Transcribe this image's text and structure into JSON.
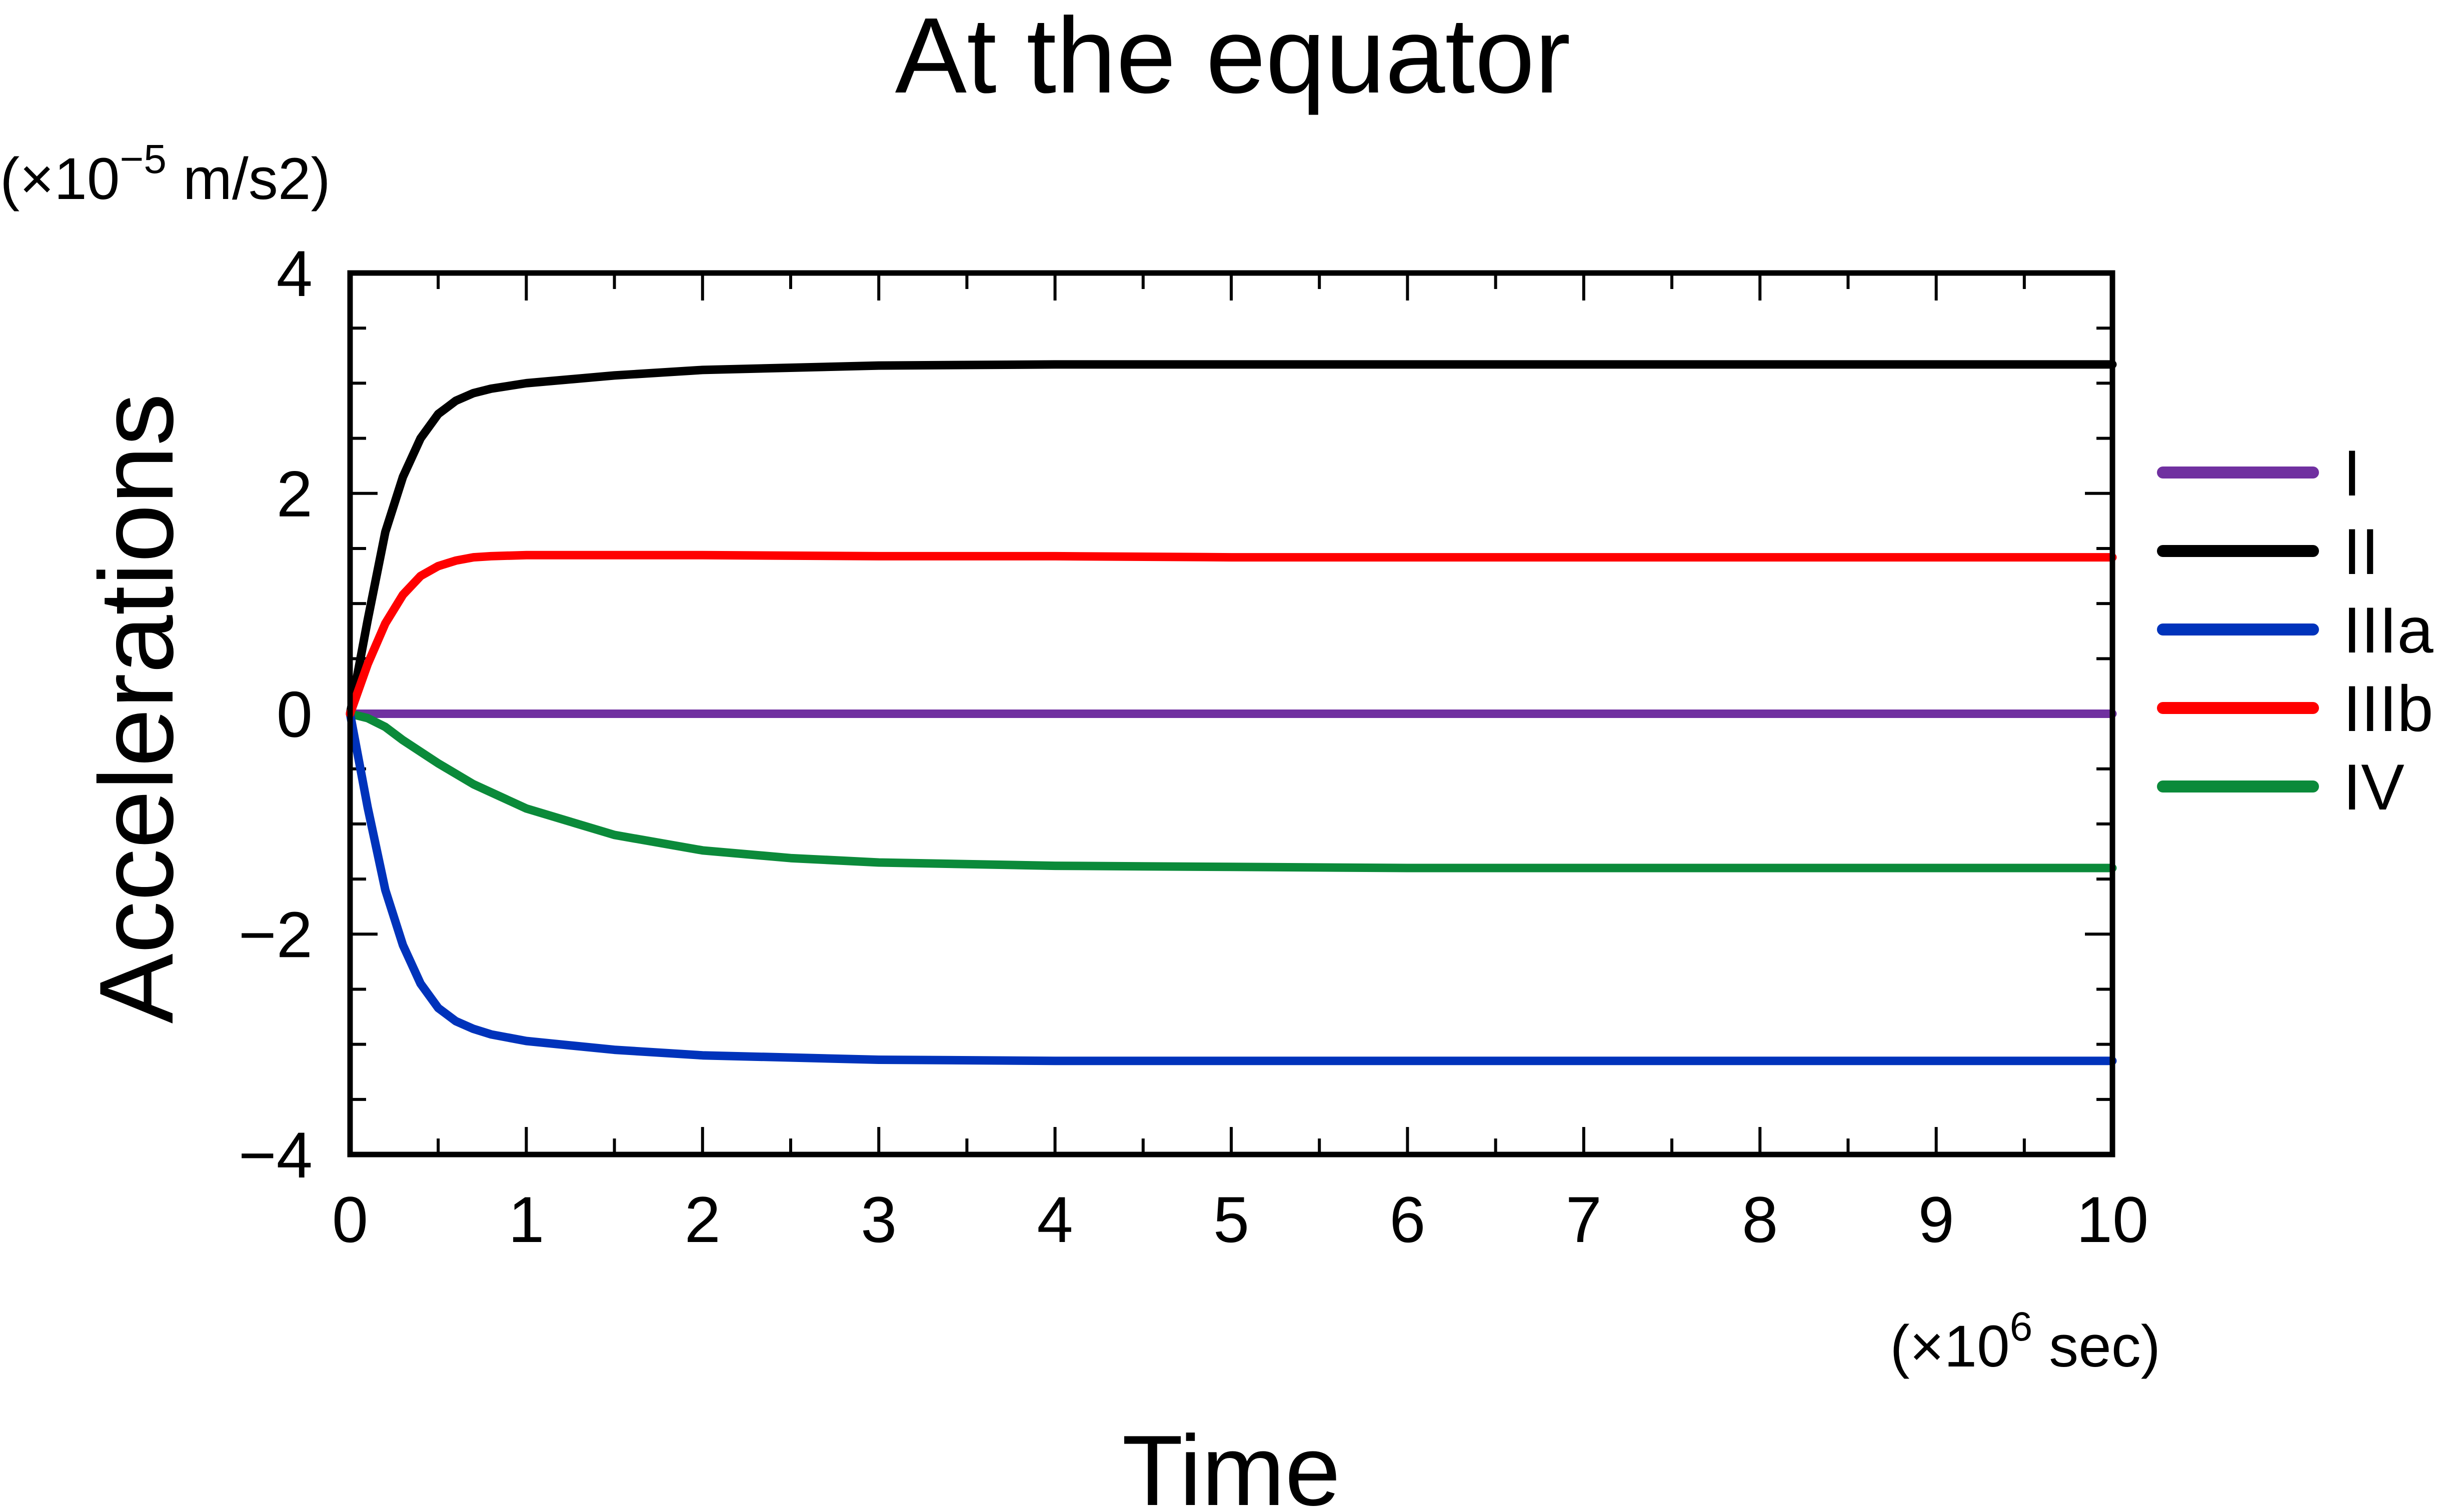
{
  "chart_data": {
    "type": "line",
    "title": "At the equator",
    "xlabel": "Time",
    "ylabel": "Accelerations",
    "x_unit": {
      "prefix": "(×10",
      "exp": "6",
      "suffix": " sec)"
    },
    "y_unit": {
      "prefix": "(×10",
      "exp": "−5",
      "suffix": " m/s2)"
    },
    "xlim": [
      0,
      10
    ],
    "ylim": [
      -4,
      4
    ],
    "x_ticks": [
      0,
      1,
      2,
      3,
      4,
      5,
      6,
      7,
      8,
      9,
      10
    ],
    "x_tick_labels": [
      "0",
      "1",
      "2",
      "3",
      "4",
      "5",
      "6",
      "7",
      "8",
      "9",
      "10"
    ],
    "y_ticks": [
      -4,
      -2,
      0,
      2,
      4
    ],
    "y_tick_labels": [
      "−4",
      "−2",
      "0",
      "2",
      "4"
    ],
    "grid": false,
    "legend_position": "right",
    "series": [
      {
        "name": "I",
        "color": "#7030a0",
        "x": [
          0,
          1,
          2,
          3,
          4,
          5,
          6,
          7,
          8,
          9,
          10
        ],
        "y": [
          0,
          0,
          0,
          0,
          0,
          0,
          0,
          0,
          0,
          0,
          0
        ]
      },
      {
        "name": "II",
        "color": "#000000",
        "x": [
          0,
          0.1,
          0.2,
          0.3,
          0.4,
          0.5,
          0.6,
          0.7,
          0.8,
          1.0,
          1.5,
          2.0,
          3.0,
          4.0,
          5.0,
          6.0,
          8.0,
          10.0
        ],
        "y": [
          0,
          0.85,
          1.65,
          2.15,
          2.5,
          2.72,
          2.84,
          2.91,
          2.95,
          3.0,
          3.07,
          3.12,
          3.16,
          3.17,
          3.17,
          3.17,
          3.17,
          3.17
        ]
      },
      {
        "name": "IIIa",
        "color": "#0033bb",
        "x": [
          0,
          0.1,
          0.2,
          0.3,
          0.4,
          0.5,
          0.6,
          0.7,
          0.8,
          1.0,
          1.5,
          2.0,
          3.0,
          4.0,
          5.0,
          6.0,
          8.0,
          10.0
        ],
        "y": [
          0,
          -0.85,
          -1.6,
          -2.1,
          -2.45,
          -2.67,
          -2.79,
          -2.86,
          -2.91,
          -2.97,
          -3.05,
          -3.1,
          -3.14,
          -3.15,
          -3.15,
          -3.15,
          -3.15,
          -3.15
        ]
      },
      {
        "name": "IIIb",
        "color": "#ff0000",
        "x": [
          0,
          0.1,
          0.2,
          0.3,
          0.4,
          0.5,
          0.6,
          0.7,
          0.8,
          1.0,
          1.5,
          2.0,
          3.0,
          4.0,
          5.0,
          6.0,
          8.0,
          10.0
        ],
        "y": [
          0,
          0.45,
          0.82,
          1.08,
          1.25,
          1.34,
          1.39,
          1.42,
          1.43,
          1.44,
          1.44,
          1.44,
          1.43,
          1.43,
          1.42,
          1.42,
          1.42,
          1.42
        ]
      },
      {
        "name": "IV",
        "color": "#0b8a3a",
        "x": [
          0,
          0.1,
          0.2,
          0.3,
          0.5,
          0.7,
          1.0,
          1.5,
          2.0,
          2.5,
          3.0,
          4.0,
          5.0,
          6.0,
          7.0,
          8.0,
          10.0
        ],
        "y": [
          0,
          -0.04,
          -0.12,
          -0.24,
          -0.45,
          -0.64,
          -0.86,
          -1.1,
          -1.24,
          -1.31,
          -1.35,
          -1.38,
          -1.39,
          -1.4,
          -1.4,
          -1.4,
          -1.4
        ]
      }
    ]
  }
}
